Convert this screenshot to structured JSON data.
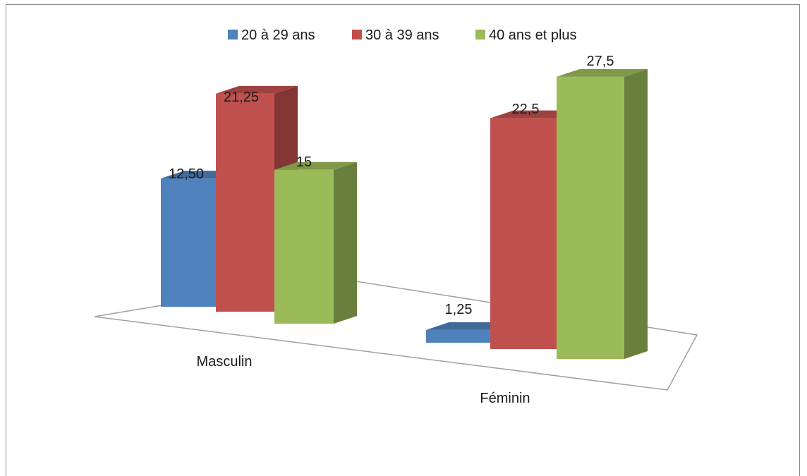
{
  "chart_data": {
    "type": "bar",
    "title": "",
    "xlabel": "",
    "ylabel": "",
    "categories": [
      "Masculin",
      "Féminin"
    ],
    "series": [
      {
        "name": "20 à 29 ans",
        "values": [
          12.5,
          1.25
        ],
        "labels": [
          "12,50",
          "1,25"
        ],
        "color": "#4f81bd"
      },
      {
        "name": "30 à 39 ans",
        "values": [
          21.25,
          22.5
        ],
        "labels": [
          "21,25",
          "22,5"
        ],
        "color": "#c0504d"
      },
      {
        "name": "40 ans et plus",
        "values": [
          15,
          27.5
        ],
        "labels": [
          "15",
          "27,5"
        ],
        "color": "#9bbb59"
      }
    ],
    "ylim": [
      0,
      30
    ],
    "grid": false,
    "legend_position": "top",
    "style": "3d-clustered-column"
  }
}
